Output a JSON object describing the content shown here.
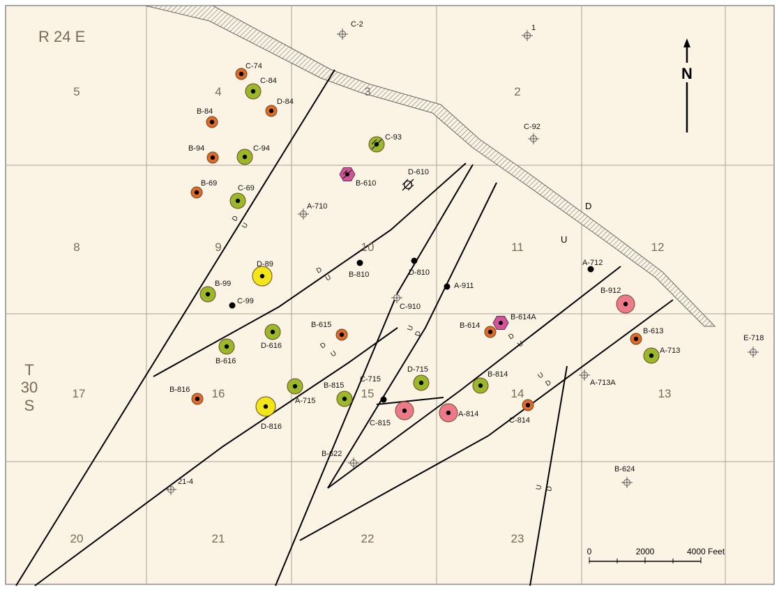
{
  "map": {
    "range_label": "R 24 E",
    "township_label": [
      "T",
      "30",
      "S"
    ],
    "north_label": "N",
    "scale": {
      "ticks": [
        "0",
        "2000",
        "4000 Feet"
      ]
    },
    "hatch_marks": {
      "d": "D",
      "u": "U"
    },
    "sections": [
      {
        "num": "5"
      },
      {
        "num": "4"
      },
      {
        "num": "3"
      },
      {
        "num": "2"
      },
      {
        "num": "8"
      },
      {
        "num": "9"
      },
      {
        "num": "10"
      },
      {
        "num": "11"
      },
      {
        "num": "12"
      },
      {
        "num": "17"
      },
      {
        "num": "16"
      },
      {
        "num": "15"
      },
      {
        "num": "14"
      },
      {
        "num": "13"
      },
      {
        "num": "20"
      },
      {
        "num": "21"
      },
      {
        "num": "22"
      },
      {
        "num": "23"
      }
    ],
    "fault_ud": [
      "D",
      "U",
      "D",
      "U",
      "D",
      "U",
      "U",
      "D",
      "D",
      "U",
      "U",
      "D",
      "U",
      "D"
    ],
    "wells": [
      {
        "label": "C-74",
        "type": "orange"
      },
      {
        "label": "C-84",
        "type": "green"
      },
      {
        "label": "D-84",
        "type": "orange"
      },
      {
        "label": "B-84",
        "type": "orange"
      },
      {
        "label": "B-94",
        "type": "orange"
      },
      {
        "label": "C-94",
        "type": "green"
      },
      {
        "label": "B-69",
        "type": "orange"
      },
      {
        "label": "C-69",
        "type": "green"
      },
      {
        "label": "C-93",
        "type": "green-hatched"
      },
      {
        "label": "B-610",
        "type": "pink-hex-hatched"
      },
      {
        "label": "D-610",
        "type": "hatched-symbol"
      },
      {
        "label": "A-710",
        "type": "plugged"
      },
      {
        "label": "C-2",
        "type": "plugged"
      },
      {
        "label": "1",
        "type": "plugged"
      },
      {
        "label": "C-92",
        "type": "plugged"
      },
      {
        "label": "D-89",
        "type": "yellow"
      },
      {
        "label": "B-99",
        "type": "green"
      },
      {
        "label": "C-99",
        "type": "dot"
      },
      {
        "label": "B-810",
        "type": "dot"
      },
      {
        "label": "D-810",
        "type": "dot"
      },
      {
        "label": "A-911",
        "type": "dot"
      },
      {
        "label": "C-910",
        "type": "plugged"
      },
      {
        "label": "A-712",
        "type": "dot"
      },
      {
        "label": "B-912",
        "type": "pink"
      },
      {
        "label": "B-615",
        "type": "orange"
      },
      {
        "label": "D-616",
        "type": "green"
      },
      {
        "label": "B-616",
        "type": "green"
      },
      {
        "label": "B-614",
        "type": "orange"
      },
      {
        "label": "B-614A",
        "type": "pink-hex"
      },
      {
        "label": "B-613",
        "type": "orange"
      },
      {
        "label": "A-713",
        "type": "green"
      },
      {
        "label": "E-718",
        "type": "plugged"
      },
      {
        "label": "A-713A",
        "type": "plugged"
      },
      {
        "label": "D-715",
        "type": "green"
      },
      {
        "label": "B-814",
        "type": "green"
      },
      {
        "label": "C-715",
        "type": "dot"
      },
      {
        "label": "B-815",
        "type": "green"
      },
      {
        "label": "A-715",
        "type": "green"
      },
      {
        "label": "B-816",
        "type": "orange"
      },
      {
        "label": "D-816",
        "type": "yellow"
      },
      {
        "label": "C-815",
        "type": "pink"
      },
      {
        "label": "A-814",
        "type": "pink"
      },
      {
        "label": "C-814",
        "type": "orange"
      },
      {
        "label": "B-622",
        "type": "plugged"
      },
      {
        "label": "B-624",
        "type": "plugged"
      },
      {
        "label": "21-4",
        "type": "plugged"
      }
    ],
    "colors": {
      "background": "#fbf3e4",
      "grid": "#a8a095",
      "fault": "#000000",
      "orange": "#e06a2a",
      "green": "#9ab82a",
      "yellow": "#f2e618",
      "pink": "#ec7a8a",
      "magenta": "#d2559a"
    }
  }
}
